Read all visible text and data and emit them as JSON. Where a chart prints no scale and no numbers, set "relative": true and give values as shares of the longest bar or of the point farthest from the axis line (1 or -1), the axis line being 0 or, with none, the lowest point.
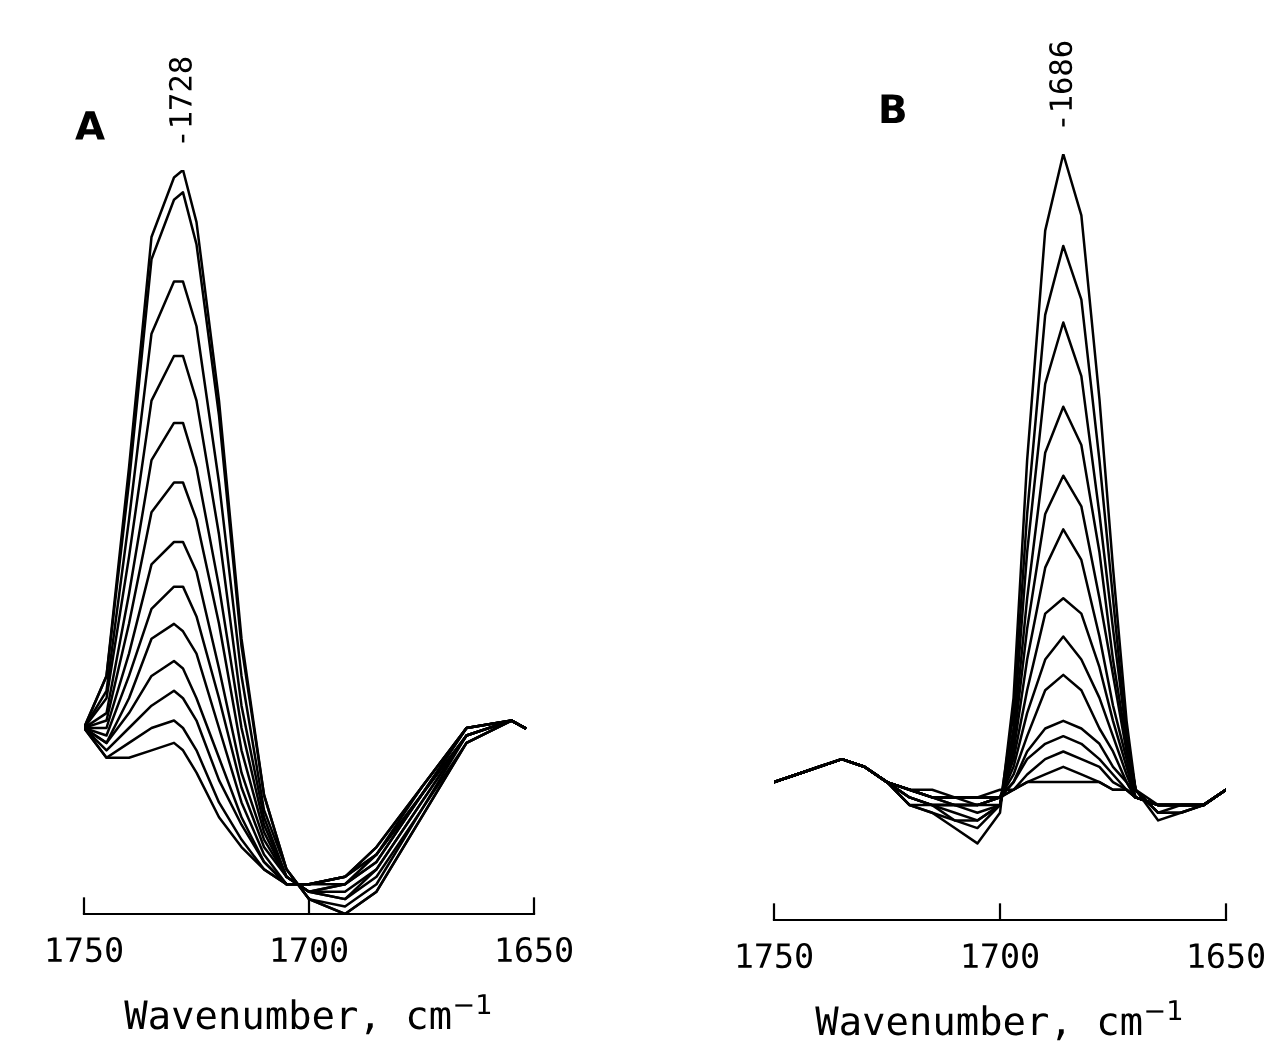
{
  "chart_data": [
    {
      "type": "line",
      "title": "A",
      "xlabel": "Wavenumber, cm$^{−1}$",
      "relative": true,
      "xlim": [
        1750,
        1650
      ],
      "xticks": [
        1750,
        1700,
        1650
      ],
      "x": [
        1750,
        1745,
        1740,
        1735,
        1730,
        1728,
        1725,
        1720,
        1715,
        1710,
        1705,
        1700,
        1692,
        1685,
        1675,
        1665,
        1655,
        1652
      ],
      "annotations": [
        {
          "text": "-1728",
          "x": 1728,
          "y": 1.0
        }
      ],
      "series": [
        {
          "color": "#000000",
          "values": [
            0.25,
            0.32,
            0.6,
            0.91,
            0.99,
            1.0,
            0.93,
            0.69,
            0.37,
            0.16,
            0.06,
            0.02,
            0.0,
            0.03,
            0.13,
            0.23,
            0.26,
            0.25
          ]
        },
        {
          "color": "#000000",
          "values": [
            0.25,
            0.32,
            0.58,
            0.88,
            0.96,
            0.97,
            0.9,
            0.67,
            0.36,
            0.16,
            0.06,
            0.02,
            0.0,
            0.03,
            0.13,
            0.23,
            0.26,
            0.25
          ]
        },
        {
          "color": "#000000",
          "values": [
            0.25,
            0.3,
            0.53,
            0.78,
            0.85,
            0.85,
            0.79,
            0.58,
            0.32,
            0.14,
            0.06,
            0.02,
            0.01,
            0.04,
            0.14,
            0.23,
            0.26,
            0.25
          ]
        },
        {
          "color": "#000000",
          "values": [
            0.25,
            0.29,
            0.48,
            0.69,
            0.75,
            0.75,
            0.69,
            0.51,
            0.28,
            0.13,
            0.05,
            0.03,
            0.02,
            0.05,
            0.14,
            0.24,
            0.26,
            0.25
          ]
        },
        {
          "color": "#000000",
          "values": [
            0.25,
            0.27,
            0.43,
            0.61,
            0.66,
            0.66,
            0.6,
            0.44,
            0.25,
            0.12,
            0.05,
            0.03,
            0.02,
            0.06,
            0.15,
            0.24,
            0.26,
            0.25
          ]
        },
        {
          "color": "#000000",
          "values": [
            0.25,
            0.26,
            0.39,
            0.54,
            0.58,
            0.58,
            0.53,
            0.39,
            0.22,
            0.11,
            0.05,
            0.03,
            0.03,
            0.06,
            0.15,
            0.24,
            0.26,
            0.25
          ]
        },
        {
          "color": "#000000",
          "values": [
            0.25,
            0.25,
            0.35,
            0.47,
            0.5,
            0.5,
            0.46,
            0.33,
            0.19,
            0.1,
            0.05,
            0.03,
            0.04,
            0.07,
            0.16,
            0.24,
            0.26,
            0.25
          ]
        },
        {
          "color": "#000000",
          "values": [
            0.25,
            0.24,
            0.32,
            0.41,
            0.44,
            0.44,
            0.4,
            0.29,
            0.17,
            0.09,
            0.05,
            0.03,
            0.04,
            0.07,
            0.16,
            0.24,
            0.26,
            0.25
          ]
        },
        {
          "color": "#000000",
          "values": [
            0.25,
            0.23,
            0.29,
            0.37,
            0.39,
            0.38,
            0.35,
            0.25,
            0.15,
            0.08,
            0.04,
            0.04,
            0.04,
            0.08,
            0.16,
            0.25,
            0.26,
            0.25
          ]
        },
        {
          "color": "#000000",
          "values": [
            0.25,
            0.23,
            0.27,
            0.32,
            0.34,
            0.33,
            0.29,
            0.21,
            0.13,
            0.07,
            0.04,
            0.04,
            0.05,
            0.08,
            0.16,
            0.25,
            0.26,
            0.25
          ]
        },
        {
          "color": "#000000",
          "values": [
            0.25,
            0.22,
            0.25,
            0.28,
            0.3,
            0.29,
            0.26,
            0.18,
            0.12,
            0.07,
            0.04,
            0.04,
            0.05,
            0.08,
            0.17,
            0.25,
            0.26,
            0.25
          ]
        },
        {
          "color": "#000000",
          "values": [
            0.25,
            0.21,
            0.23,
            0.25,
            0.26,
            0.25,
            0.22,
            0.15,
            0.1,
            0.06,
            0.04,
            0.04,
            0.05,
            0.09,
            0.17,
            0.25,
            0.26,
            0.25
          ]
        },
        {
          "color": "#000000",
          "values": [
            0.25,
            0.21,
            0.21,
            0.22,
            0.23,
            0.22,
            0.19,
            0.13,
            0.09,
            0.06,
            0.04,
            0.04,
            0.05,
            0.09,
            0.17,
            0.25,
            0.26,
            0.25
          ]
        }
      ]
    },
    {
      "type": "line",
      "title": "B",
      "xlabel": "Wavenumber, cm$^{−1}$",
      "relative": true,
      "xlim": [
        1750,
        1650
      ],
      "xticks": [
        1750,
        1700,
        1650
      ],
      "x": [
        1750,
        1745,
        1740,
        1735,
        1730,
        1725,
        1720,
        1715,
        1710,
        1705,
        1700,
        1697,
        1694,
        1690,
        1686,
        1682,
        1678,
        1675,
        1672,
        1670,
        1665,
        1660,
        1655,
        1650
      ],
      "annotations": [
        {
          "text": "-1686",
          "x": 1686,
          "y": 1.0
        }
      ],
      "series": [
        {
          "color": "#000000",
          "values": [
            0.18,
            0.19,
            0.2,
            0.21,
            0.2,
            0.18,
            0.15,
            0.14,
            0.12,
            0.1,
            0.14,
            0.29,
            0.6,
            0.9,
            1.0,
            0.92,
            0.68,
            0.46,
            0.26,
            0.17,
            0.13,
            0.14,
            0.15,
            0.17
          ]
        },
        {
          "color": "#000000",
          "values": [
            0.18,
            0.19,
            0.2,
            0.21,
            0.2,
            0.18,
            0.15,
            0.14,
            0.13,
            0.12,
            0.15,
            0.27,
            0.53,
            0.79,
            0.88,
            0.81,
            0.6,
            0.42,
            0.24,
            0.17,
            0.14,
            0.14,
            0.15,
            0.17
          ]
        },
        {
          "color": "#000000",
          "values": [
            0.18,
            0.19,
            0.2,
            0.21,
            0.2,
            0.18,
            0.15,
            0.15,
            0.13,
            0.13,
            0.15,
            0.25,
            0.48,
            0.7,
            0.78,
            0.71,
            0.53,
            0.38,
            0.24,
            0.17,
            0.14,
            0.14,
            0.15,
            0.17
          ]
        },
        {
          "color": "#000000",
          "values": [
            0.18,
            0.19,
            0.2,
            0.21,
            0.2,
            0.18,
            0.16,
            0.15,
            0.14,
            0.13,
            0.15,
            0.24,
            0.42,
            0.61,
            0.67,
            0.62,
            0.48,
            0.34,
            0.23,
            0.17,
            0.14,
            0.15,
            0.15,
            0.17
          ]
        },
        {
          "color": "#000000",
          "values": [
            0.18,
            0.19,
            0.2,
            0.21,
            0.2,
            0.18,
            0.16,
            0.15,
            0.15,
            0.14,
            0.15,
            0.23,
            0.38,
            0.53,
            0.58,
            0.54,
            0.42,
            0.32,
            0.22,
            0.17,
            0.15,
            0.15,
            0.15,
            0.17
          ]
        },
        {
          "color": "#000000",
          "values": [
            0.18,
            0.19,
            0.2,
            0.21,
            0.2,
            0.18,
            0.16,
            0.15,
            0.15,
            0.15,
            0.15,
            0.22,
            0.34,
            0.46,
            0.51,
            0.47,
            0.37,
            0.28,
            0.21,
            0.16,
            0.15,
            0.15,
            0.15,
            0.17
          ]
        },
        {
          "color": "#000000",
          "values": [
            0.18,
            0.19,
            0.2,
            0.21,
            0.2,
            0.18,
            0.16,
            0.15,
            0.15,
            0.15,
            0.16,
            0.21,
            0.3,
            0.4,
            0.42,
            0.4,
            0.33,
            0.26,
            0.2,
            0.16,
            0.15,
            0.15,
            0.15,
            0.17
          ]
        },
        {
          "color": "#000000",
          "values": [
            0.18,
            0.19,
            0.2,
            0.21,
            0.2,
            0.18,
            0.17,
            0.16,
            0.15,
            0.15,
            0.16,
            0.2,
            0.27,
            0.34,
            0.37,
            0.34,
            0.29,
            0.24,
            0.19,
            0.16,
            0.15,
            0.15,
            0.15,
            0.17
          ]
        },
        {
          "color": "#000000",
          "values": [
            0.18,
            0.19,
            0.2,
            0.21,
            0.2,
            0.18,
            0.17,
            0.16,
            0.15,
            0.15,
            0.16,
            0.19,
            0.24,
            0.3,
            0.32,
            0.3,
            0.25,
            0.22,
            0.18,
            0.16,
            0.15,
            0.15,
            0.15,
            0.17
          ]
        },
        {
          "color": "#000000",
          "values": [
            0.18,
            0.19,
            0.2,
            0.21,
            0.2,
            0.18,
            0.17,
            0.16,
            0.16,
            0.15,
            0.16,
            0.18,
            0.22,
            0.25,
            0.26,
            0.25,
            0.23,
            0.2,
            0.18,
            0.16,
            0.15,
            0.15,
            0.15,
            0.17
          ]
        },
        {
          "color": "#000000",
          "values": [
            0.18,
            0.19,
            0.2,
            0.21,
            0.2,
            0.18,
            0.17,
            0.16,
            0.16,
            0.16,
            0.16,
            0.18,
            0.21,
            0.23,
            0.24,
            0.23,
            0.21,
            0.19,
            0.17,
            0.16,
            0.15,
            0.15,
            0.15,
            0.17
          ]
        },
        {
          "color": "#000000",
          "values": [
            0.18,
            0.19,
            0.2,
            0.21,
            0.2,
            0.18,
            0.17,
            0.16,
            0.16,
            0.16,
            0.16,
            0.17,
            0.19,
            0.21,
            0.22,
            0.21,
            0.2,
            0.18,
            0.17,
            0.16,
            0.15,
            0.15,
            0.15,
            0.17
          ]
        },
        {
          "color": "#000000",
          "values": [
            0.18,
            0.19,
            0.2,
            0.21,
            0.2,
            0.18,
            0.17,
            0.16,
            0.16,
            0.16,
            0.16,
            0.17,
            0.18,
            0.19,
            0.2,
            0.19,
            0.18,
            0.17,
            0.17,
            0.16,
            0.15,
            0.15,
            0.15,
            0.17
          ]
        },
        {
          "color": "#000000",
          "values": [
            0.18,
            0.19,
            0.2,
            0.21,
            0.2,
            0.18,
            0.17,
            0.17,
            0.16,
            0.16,
            0.17,
            0.17,
            0.18,
            0.18,
            0.18,
            0.18,
            0.18,
            0.17,
            0.17,
            0.16,
            0.15,
            0.15,
            0.15,
            0.17
          ]
        }
      ]
    }
  ]
}
